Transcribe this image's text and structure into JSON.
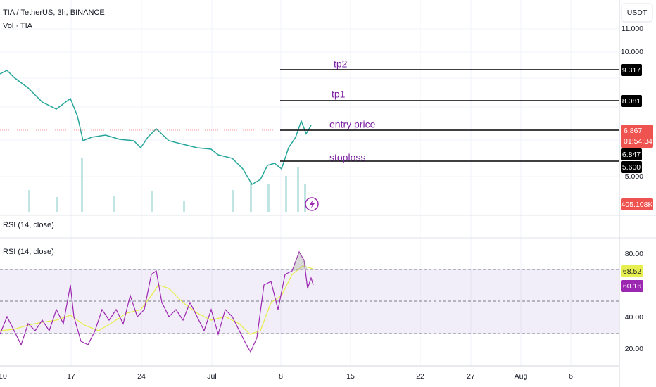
{
  "header": {
    "symbol": "TIA / TetherUS, 3h, BINANCE",
    "volume": "Vol · TIA",
    "currency": "USDT"
  },
  "price_axis": {
    "labels": [
      "11.000",
      "10.000",
      "5.000"
    ],
    "badges": {
      "tp2": "9.317",
      "tp1": "8.081",
      "last": "6.867",
      "countdown": "01:54:34",
      "prev": "6.847",
      "stoploss": "5.600",
      "volume": "405.108K"
    }
  },
  "levels": [
    "tp2",
    "tp1",
    "entry price",
    "stoploss"
  ],
  "rsi_panes": [
    "RSI (14, close)",
    "RSI (14, close)"
  ],
  "rsi_axis": {
    "labels": [
      "80.00",
      "40.00",
      "20.00"
    ],
    "badges": [
      "68.52",
      "60.16"
    ]
  },
  "time_axis": [
    "10",
    "17",
    "24",
    "Jul",
    "8",
    "15",
    "22",
    "27",
    "Aug",
    "6"
  ]
}
